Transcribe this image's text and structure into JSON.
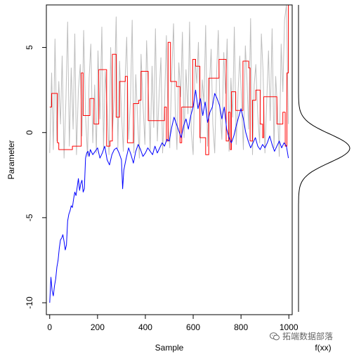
{
  "chart_data": [
    {
      "type": "line",
      "xlabel": "Sample",
      "ylabel": "Parameter",
      "xlim": [
        -14,
        1014
      ],
      "ylim": [
        -10.7,
        7.5
      ],
      "xticks": [
        0,
        200,
        400,
        600,
        800,
        1000
      ],
      "yticks": [
        -10,
        -5,
        0,
        5
      ],
      "series": [
        {
          "color": "#bebebe",
          "description_role": "proposal trace (grey)",
          "x": [
            0,
            8,
            15,
            22,
            30,
            38,
            45,
            52,
            60,
            68,
            75,
            82,
            90,
            98,
            105,
            112,
            120,
            128,
            135,
            142,
            150,
            158,
            165,
            172,
            180,
            188,
            195,
            202,
            210,
            218,
            225,
            232,
            240,
            248,
            255,
            262,
            270,
            278,
            285,
            292,
            300,
            308,
            315,
            322,
            330,
            338,
            345,
            352,
            360,
            368,
            375,
            382,
            390,
            398,
            405,
            412,
            420,
            428,
            435,
            442,
            450,
            458,
            465,
            472,
            480,
            488,
            495,
            502,
            510,
            518,
            525,
            532,
            540,
            548,
            555,
            562,
            570,
            578,
            585,
            592,
            600,
            608,
            615,
            622,
            630,
            638,
            645,
            652,
            660,
            668,
            675,
            682,
            690,
            698,
            705,
            712,
            720,
            728,
            735,
            742,
            750,
            758,
            765,
            772,
            780,
            788,
            795,
            802,
            810,
            818,
            825,
            832,
            840,
            848,
            855,
            862,
            870,
            878,
            885,
            892,
            900,
            908,
            915,
            922,
            930,
            938,
            945,
            952,
            960,
            968,
            975,
            982,
            990,
            998
          ],
          "y": [
            -1.2,
            3.5,
            -1.0,
            5.5,
            -0.5,
            3.0,
            0.5,
            4.5,
            -1.5,
            2.0,
            6.5,
            -0.8,
            3.8,
            0.2,
            5.8,
            -1.3,
            2.5,
            4.0,
            -0.2,
            6.0,
            1.0,
            -1.4,
            3.2,
            5.2,
            -0.6,
            2.8,
            -1.2,
            4.8,
            0.8,
            6.2,
            -1.0,
            3.6,
            1.5,
            -1.3,
            5.0,
            0.0,
            2.2,
            6.8,
            -0.9,
            4.2,
            1.2,
            -1.1,
            3.0,
            5.6,
            -0.4,
            2.0,
            6.6,
            -1.2,
            3.4,
            0.6,
            -1.5,
            4.6,
            1.8,
            -0.7,
            5.4,
            2.6,
            -1.1,
            3.9,
            0.3,
            6.1,
            -0.5,
            2.4,
            4.4,
            -1.2,
            1.6,
            5.7,
            0.4,
            -0.9,
            3.3,
            6.4,
            1.4,
            -1.0,
            4.1,
            2.1,
            5.9,
            -0.3,
            3.7,
            1.1,
            6.5,
            0.1,
            -1.3,
            4.3,
            2.9,
            5.3,
            -0.6,
            3.1,
            1.7,
            6.3,
            -0.8,
            2.7,
            4.9,
            0.5,
            -1.2,
            3.5,
            6.0,
            1.3,
            -0.4,
            4.7,
            2.3,
            5.5,
            -1.1,
            3.2,
            0.9,
            6.2,
            -0.7,
            2.5,
            4.5,
            1.9,
            -1.0,
            5.1,
            3.0,
            0.2,
            6.7,
            -1.3,
            2.8,
            4.0,
            1.0,
            -0.6,
            5.8,
            3.6,
            -1.2,
            2.0,
            4.8,
            0.7,
            6.1,
            -0.9,
            3.3,
            1.5,
            -1.4,
            5.2,
            2.4,
            6.6,
            7.5,
            0.5
          ]
        },
        {
          "color": "#ff0000",
          "description_role": "accepted trace (red step)",
          "x": [
            0,
            8,
            32,
            38,
            95,
            132,
            140,
            168,
            185,
            205,
            238,
            252,
            262,
            278,
            292,
            316,
            325,
            350,
            372,
            382,
            412,
            480,
            488,
            495,
            505,
            530,
            545,
            552,
            598,
            610,
            628,
            652,
            665,
            708,
            738,
            748,
            755,
            760,
            778,
            808,
            832,
            838,
            848,
            862,
            880,
            890,
            895,
            950,
            975,
            985,
            992,
            998
          ],
          "y": [
            1.5,
            2.3,
            -0.6,
            -1.0,
            -0.8,
            3.5,
            1.0,
            2.0,
            0.5,
            3.7,
            -0.8,
            -0.5,
            4.6,
            0.9,
            3.0,
            3.3,
            -0.6,
            1.7,
            1.9,
            3.6,
            0.7,
            1.5,
            -0.5,
            5.3,
            3.0,
            2.7,
            -0.6,
            1.5,
            4.3,
            3.9,
            -0.3,
            -1.3,
            3.2,
            4.3,
            -0.5,
            1.2,
            -1.0,
            2.4,
            1.3,
            4.2,
            3.8,
            -0.5,
            1.9,
            2.5,
            0.5,
            -0.3,
            2.1,
            0.5,
            1.2,
            -0.8,
            3.5,
            7.5
          ]
        },
        {
          "color": "#0000ff",
          "description_role": "chain trace (blue)",
          "x": [
            0,
            5,
            10,
            15,
            20,
            25,
            30,
            35,
            40,
            45,
            50,
            55,
            60,
            65,
            70,
            75,
            80,
            85,
            90,
            95,
            100,
            105,
            110,
            115,
            120,
            125,
            130,
            135,
            140,
            145,
            150,
            155,
            160,
            165,
            170,
            180,
            190,
            200,
            210,
            220,
            230,
            240,
            250,
            260,
            270,
            280,
            290,
            300,
            305,
            310,
            320,
            330,
            340,
            350,
            360,
            370,
            380,
            390,
            400,
            410,
            420,
            430,
            440,
            450,
            460,
            470,
            480,
            490,
            500,
            510,
            520,
            530,
            540,
            550,
            560,
            570,
            580,
            590,
            600,
            610,
            620,
            630,
            640,
            650,
            660,
            670,
            680,
            690,
            700,
            710,
            720,
            730,
            740,
            750,
            760,
            770,
            780,
            790,
            800,
            810,
            820,
            830,
            840,
            850,
            860,
            870,
            880,
            890,
            900,
            910,
            920,
            930,
            940,
            950,
            960,
            970,
            980,
            990,
            998
          ],
          "y": [
            -10.0,
            -8.5,
            -9.3,
            -9.6,
            -9.0,
            -8.6,
            -7.9,
            -7.5,
            -6.8,
            -6.3,
            -6.2,
            -6.0,
            -6.4,
            -6.9,
            -6.6,
            -5.2,
            -4.8,
            -4.6,
            -4.3,
            -4.4,
            -3.9,
            -3.5,
            -3.7,
            -3.2,
            -2.7,
            -3.4,
            -3.0,
            -2.8,
            -3.5,
            -3.3,
            -1.5,
            -1.2,
            -1.1,
            -1.4,
            -1.0,
            -1.3,
            -1.1,
            -0.9,
            -1.5,
            -1.2,
            -0.8,
            -1.6,
            -1.9,
            -1.3,
            -1.0,
            -0.9,
            -1.2,
            -1.6,
            -3.3,
            -2.2,
            -1.5,
            -0.9,
            -1.3,
            -1.8,
            -1.1,
            -0.7,
            -1.0,
            -1.4,
            -1.2,
            -0.9,
            -1.1,
            -1.3,
            -0.8,
            -1.2,
            -0.9,
            -0.6,
            -0.8,
            -0.4,
            -0.5,
            0.3,
            0.9,
            0.5,
            0.1,
            -0.3,
            0.4,
            0.8,
            0.2,
            1.0,
            1.5,
            2.5,
            1.4,
            2.0,
            1.0,
            1.8,
            0.6,
            1.2,
            1.5,
            2.3,
            2.0,
            1.6,
            0.8,
            1.5,
            0.2,
            -0.3,
            -0.6,
            -0.2,
            0.4,
            0.9,
            1.4,
            0.8,
            0.0,
            -0.5,
            -0.9,
            -0.6,
            -0.3,
            -0.8,
            -1.0,
            -0.7,
            -0.9,
            -0.6,
            -0.2,
            -0.7,
            -1.1,
            -0.8,
            -0.5,
            -0.9,
            -0.6,
            -0.8,
            -1.5
          ]
        }
      ]
    },
    {
      "type": "line",
      "xlabel": "f(xx)",
      "description_role": "marginal density curve",
      "density": {
        "mean": -1.0,
        "sd": 0.85
      },
      "ylim": [
        -10.7,
        7.5
      ],
      "yrange": [
        -10.7,
        7.5
      ]
    }
  ],
  "watermark": {
    "text": "拓端数据部落",
    "icon": "wechat-icon"
  }
}
